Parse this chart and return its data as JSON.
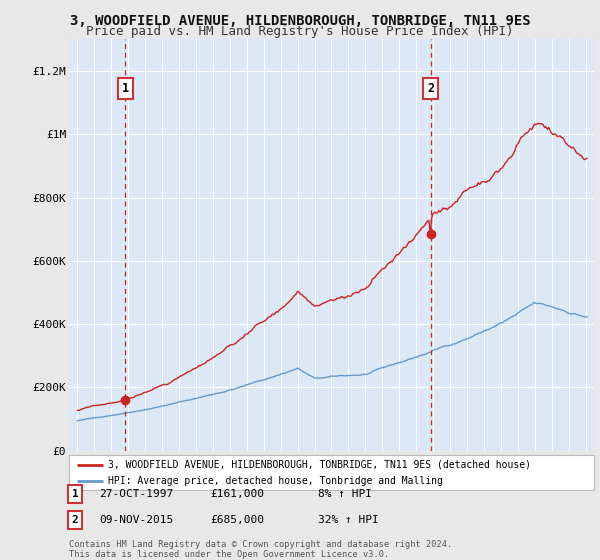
{
  "title": "3, WOODFIELD AVENUE, HILDENBOROUGH, TONBRIDGE, TN11 9ES",
  "subtitle": "Price paid vs. HM Land Registry's House Price Index (HPI)",
  "title_fontsize": 10,
  "subtitle_fontsize": 9,
  "background_color": "#e8e8e8",
  "plot_background": "#dce8f5",
  "red_color": "#cc2222",
  "blue_color": "#6699cc",
  "ylim": [
    0,
    1300000
  ],
  "yticks": [
    0,
    200000,
    400000,
    600000,
    800000,
    1000000,
    1200000
  ],
  "ytick_labels": [
    "£0",
    "£200K",
    "£400K",
    "£600K",
    "£800K",
    "£1M",
    "£1.2M"
  ],
  "sale1_year": 1997.83,
  "sale1_price": 161000,
  "sale1_label": "1",
  "sale1_date": "27-OCT-1997",
  "sale1_price_str": "£161,000",
  "sale1_pct": "8% ↑ HPI",
  "sale2_year": 2015.86,
  "sale2_price": 685000,
  "sale2_label": "2",
  "sale2_date": "09-NOV-2015",
  "sale2_price_str": "£685,000",
  "sale2_pct": "32% ↑ HPI",
  "legend_entry1": "3, WOODFIELD AVENUE, HILDENBOROUGH, TONBRIDGE, TN11 9ES (detached house)",
  "legend_entry2": "HPI: Average price, detached house, Tonbridge and Malling",
  "footnote1": "Contains HM Land Registry data © Crown copyright and database right 2024.",
  "footnote2": "This data is licensed under the Open Government Licence v3.0.",
  "xmin": 1994.5,
  "xmax": 2025.5
}
